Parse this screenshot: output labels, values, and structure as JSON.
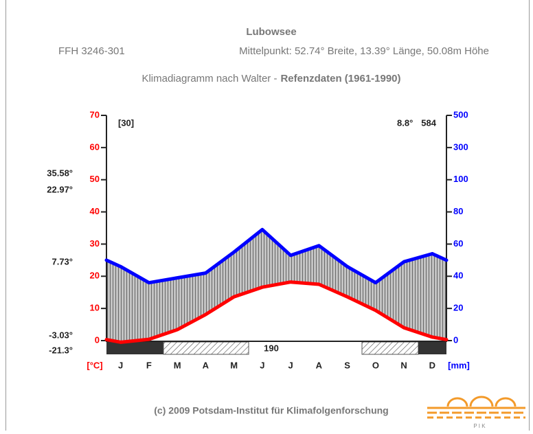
{
  "chart_data": {
    "type": "walter",
    "title": "Lubowsee",
    "subtitle": "FFH 3246-301",
    "location": "Mittelpunkt: 52.74° Breite, 13.39° Länge, 50.08m Höhe",
    "caption": "Klimadiagramm nach Walter -",
    "caption_bold": "Refenzdaten (1961-1990)",
    "categories": [
      "J",
      "F",
      "M",
      "A",
      "M",
      "J",
      "J",
      "A",
      "S",
      "O",
      "N",
      "D"
    ],
    "series": [
      {
        "color": "#ff0000",
        "axis": "y",
        "values": [
          -0.5,
          0.4,
          3.4,
          8.1,
          13.6,
          16.6,
          18.2,
          17.5,
          13.6,
          9.4,
          4.0,
          1.1
        ]
      },
      {
        "color": "#0000ff",
        "axis": "y2",
        "values": [
          46,
          36,
          39,
          42,
          55,
          69,
          53,
          59,
          46,
          36,
          49,
          54
        ]
      }
    ],
    "ylabel": "[°C]",
    "y2label": "[mm]",
    "ylim": [
      0,
      70
    ],
    "yticks": [
      0,
      10,
      20,
      30,
      40,
      50,
      60,
      70
    ],
    "y2lim": [
      0,
      500
    ],
    "y2ticks": [
      0,
      20,
      40,
      60,
      80,
      100,
      300,
      500
    ],
    "years": "[30]",
    "mean_temperature": "8.8°",
    "annual_precipitation": "584",
    "frost_free_days": "190",
    "side_labels": [
      "35.58°",
      "22.97°",
      "7.73°",
      "-3.03°",
      "-21.3°"
    ],
    "footer": "(c) 2009 Potsdam-Institut für Klimafolgenforschung",
    "logo_text": "P I K"
  }
}
